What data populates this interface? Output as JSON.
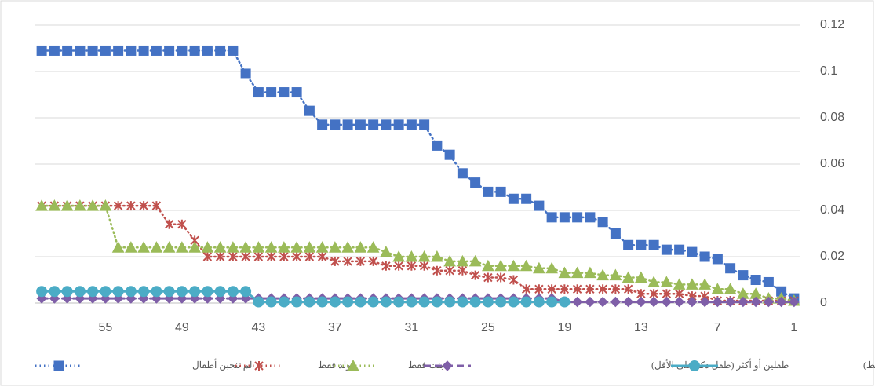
{
  "chart_data": {
    "type": "line",
    "x": [
      1,
      2,
      3,
      4,
      5,
      6,
      7,
      8,
      9,
      10,
      11,
      12,
      13,
      14,
      15,
      16,
      17,
      18,
      19,
      20,
      21,
      22,
      23,
      24,
      25,
      26,
      27,
      28,
      29,
      30,
      31,
      32,
      33,
      34,
      35,
      36,
      37,
      38,
      39,
      40,
      41,
      42,
      43,
      44,
      45,
      46,
      47,
      48,
      49,
      50,
      51,
      52,
      53,
      54,
      55,
      56,
      57,
      58,
      59,
      60
    ],
    "xlim": [
      0.5,
      60.5
    ],
    "x_reversed": true,
    "xticks": [
      1,
      7,
      13,
      19,
      25,
      31,
      37,
      43,
      49,
      55
    ],
    "ylim": [
      0,
      0.12
    ],
    "yticks": [
      0,
      0.02,
      0.04,
      0.06,
      0.08,
      0.1,
      0.12
    ],
    "y_axis_side": "right",
    "grid": true,
    "series": [
      {
        "name": "لم تنجبن أطفال",
        "color": "#4472c4",
        "marker": "square",
        "line_style": "dotted",
        "values": [
          0.002,
          0.005,
          0.009,
          0.01,
          0.012,
          0.015,
          0.019,
          0.02,
          0.022,
          0.023,
          0.023,
          0.025,
          0.025,
          0.025,
          0.03,
          0.035,
          0.037,
          0.037,
          0.037,
          0.037,
          0.042,
          0.045,
          0.045,
          0.048,
          0.048,
          0.052,
          0.056,
          0.064,
          0.068,
          0.077,
          0.077,
          0.077,
          0.077,
          0.077,
          0.077,
          0.077,
          0.077,
          0.077,
          0.083,
          0.091,
          0.091,
          0.091,
          0.091,
          0.099,
          0.109,
          0.109,
          0.109,
          0.109,
          0.109,
          0.109,
          0.109,
          0.109,
          0.109,
          0.109,
          0.109,
          0.109,
          0.109,
          0.109,
          0.109,
          0.109
        ]
      },
      {
        "name": "ولد فقط",
        "color": "#c0504d",
        "marker": "star",
        "line_style": "dotted",
        "values": [
          0.001,
          0.001,
          0.001,
          0.001,
          0.001,
          0.001,
          0.001,
          0.003,
          0.003,
          0.004,
          0.004,
          0.004,
          0.004,
          0.006,
          0.006,
          0.006,
          0.006,
          0.006,
          0.006,
          0.006,
          0.006,
          0.006,
          0.01,
          0.011,
          0.011,
          0.012,
          0.014,
          0.014,
          0.014,
          0.016,
          0.016,
          0.016,
          0.016,
          0.018,
          0.018,
          0.018,
          0.018,
          0.02,
          0.02,
          0.02,
          0.02,
          0.02,
          0.02,
          0.02,
          0.02,
          0.02,
          0.02,
          0.027,
          0.034,
          0.034,
          0.042,
          0.042,
          0.042,
          0.042,
          0.042,
          0.042,
          0.042,
          0.042,
          0.042,
          0.042
        ]
      },
      {
        "name": "بنت فقط",
        "color": "#9bbb59",
        "marker": "triangle",
        "line_style": "dotted",
        "values": [
          0.001,
          0.002,
          0.002,
          0.004,
          0.004,
          0.006,
          0.006,
          0.008,
          0.008,
          0.008,
          0.009,
          0.009,
          0.011,
          0.011,
          0.012,
          0.012,
          0.013,
          0.013,
          0.013,
          0.015,
          0.015,
          0.016,
          0.016,
          0.016,
          0.016,
          0.018,
          0.018,
          0.018,
          0.02,
          0.02,
          0.02,
          0.02,
          0.022,
          0.024,
          0.024,
          0.024,
          0.024,
          0.024,
          0.024,
          0.024,
          0.024,
          0.024,
          0.024,
          0.024,
          0.024,
          0.024,
          0.024,
          0.024,
          0.024,
          0.024,
          0.024,
          0.024,
          0.024,
          0.024,
          0.042,
          0.042,
          0.042,
          0.042,
          0.042,
          0.042
        ]
      },
      {
        "name": "طفلين أو أكثر (طفل ذكر على الأقل)",
        "color": "#7f5fa8",
        "marker": "diamond",
        "line_style": "dashed",
        "values": [
          0.0005,
          0.0005,
          0.0005,
          0.0005,
          0.0005,
          0.0005,
          0.0005,
          0.0005,
          0.0005,
          0.0005,
          0.0005,
          0.0005,
          0.0005,
          0.0005,
          0.0005,
          0.0005,
          0.0005,
          0.0005,
          0.0005,
          0.002,
          0.002,
          0.002,
          0.002,
          0.002,
          0.002,
          0.002,
          0.002,
          0.002,
          0.002,
          0.002,
          0.002,
          0.002,
          0.002,
          0.002,
          0.002,
          0.002,
          0.002,
          0.002,
          0.002,
          0.002,
          0.002,
          0.002,
          0.002,
          0.002,
          0.002,
          0.002,
          0.002,
          0.002,
          0.002,
          0.002,
          0.002,
          0.002,
          0.002,
          0.002,
          0.002,
          0.002,
          0.002,
          0.002,
          0.002,
          0.002
        ]
      },
      {
        "name": "طفلتين أو أكثر (أناث فقط)",
        "color": "#4bacc6",
        "marker": "circle",
        "line_style": "solid",
        "values": [
          null,
          null,
          null,
          null,
          null,
          null,
          null,
          null,
          null,
          null,
          null,
          null,
          null,
          null,
          null,
          null,
          null,
          null,
          0.0005,
          0.0005,
          0.0005,
          0.0005,
          0.0005,
          0.0005,
          0.0005,
          0.0005,
          0.0005,
          0.0005,
          0.0005,
          0.0005,
          0.0005,
          0.0005,
          0.0005,
          0.0005,
          0.0005,
          0.0005,
          0.0005,
          0.0005,
          0.0005,
          0.0005,
          0.0005,
          0.0005,
          0.0005,
          0.005,
          0.005,
          0.005,
          0.005,
          0.005,
          0.005,
          0.005,
          0.005,
          0.005,
          0.005,
          0.005,
          0.005,
          0.005,
          0.005,
          0.005,
          0.005,
          0.005
        ]
      }
    ]
  }
}
